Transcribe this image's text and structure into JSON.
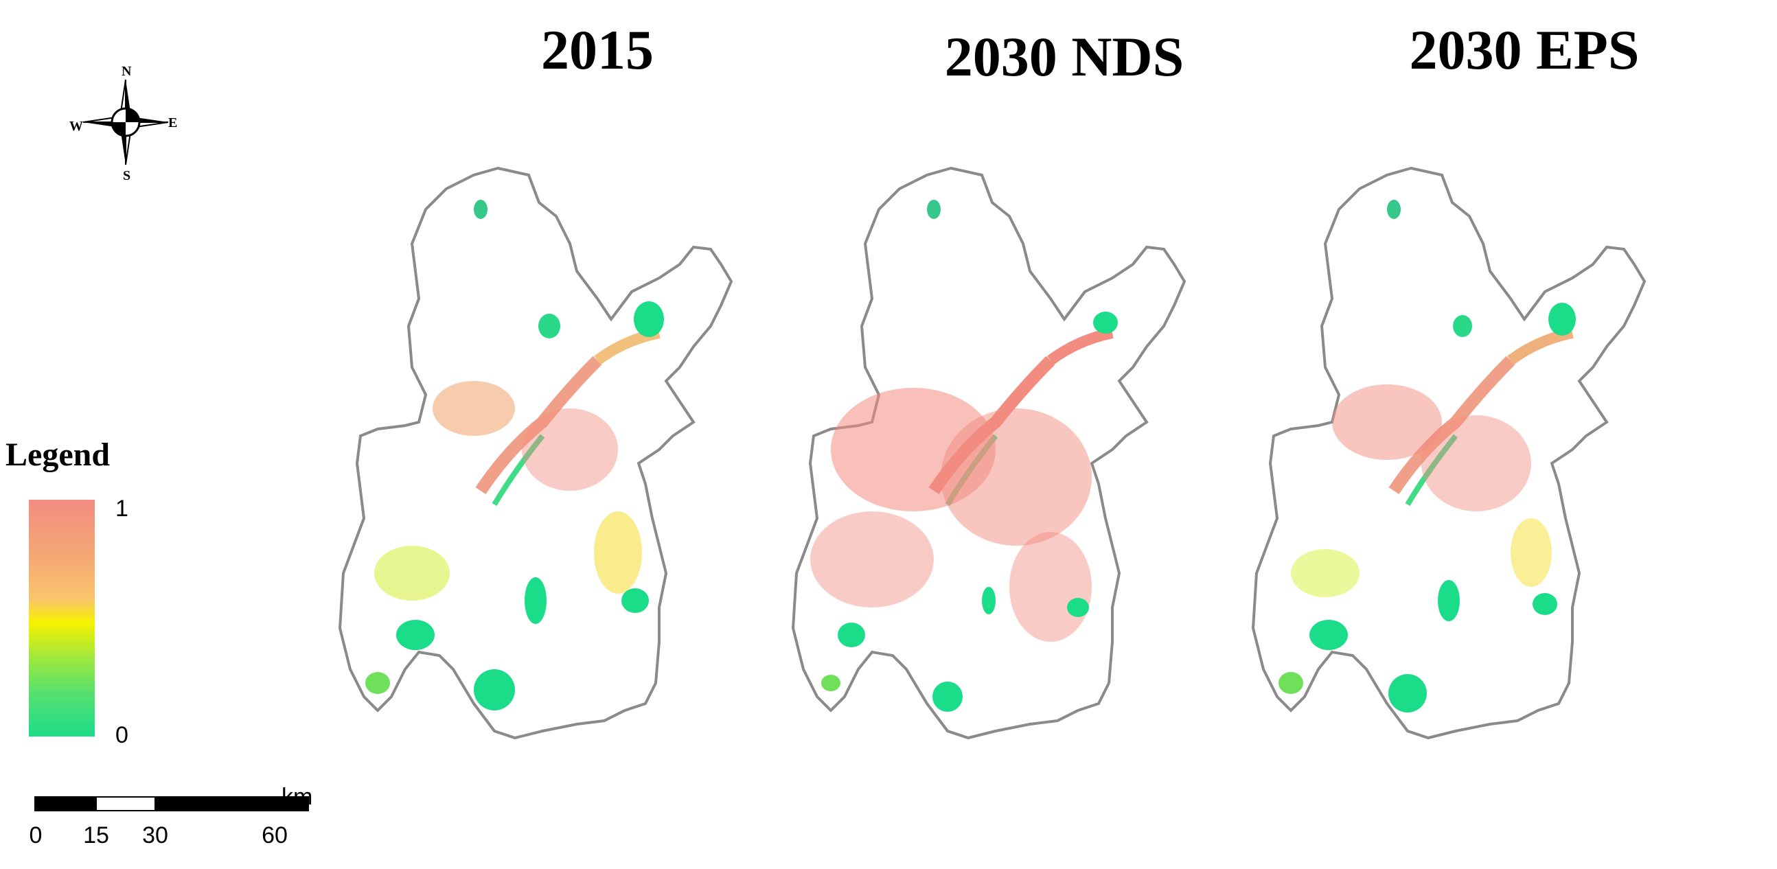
{
  "panels": [
    {
      "title": "2015"
    },
    {
      "title": "2030 NDS"
    },
    {
      "title": "2030 EPS"
    }
  ],
  "compass": {
    "north": "N",
    "south": "S",
    "east": "E",
    "west": "W"
  },
  "legend": {
    "title": "Legend",
    "max_label": "1",
    "min_label": "0",
    "colors": [
      "#f28c80",
      "#f5a974",
      "#f8c56a",
      "#f6f200",
      "#9ee83e",
      "#55e070",
      "#1bdc89"
    ]
  },
  "scale_bar": {
    "unit": "km",
    "ticks": [
      "0",
      "15",
      "30",
      "60"
    ]
  }
}
